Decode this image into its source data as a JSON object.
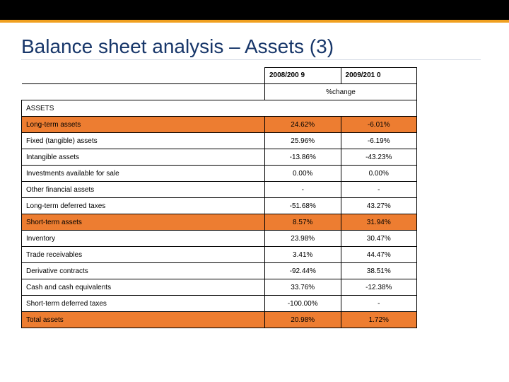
{
  "colors": {
    "top_bar": "#000000",
    "accent_bar": "#f0a020",
    "title_color": "#18376a",
    "highlight_row": "#ed7d31",
    "border": "#000000",
    "background": "#ffffff"
  },
  "title": "Balance sheet analysis – Assets (3)",
  "header": {
    "year1": "2008/200 9",
    "year2": "2009/201 0",
    "pct_label": "%change"
  },
  "section_label": "ASSETS",
  "rows": [
    {
      "label": "Long-term assets",
      "v1": "24.62%",
      "v2": "-6.01%",
      "hl": true
    },
    {
      "label": "Fixed (tangible) assets",
      "v1": "25.96%",
      "v2": "-6.19%",
      "hl": false
    },
    {
      "label": "Intangible assets",
      "v1": "-13.86%",
      "v2": "-43.23%",
      "hl": false
    },
    {
      "label": "Investments available for sale",
      "v1": "0.00%",
      "v2": "0.00%",
      "hl": false
    },
    {
      "label": "Other financial assets",
      "v1": "-",
      "v2": "-",
      "hl": false
    },
    {
      "label": "Long-term deferred taxes",
      "v1": "-51.68%",
      "v2": "43.27%",
      "hl": false
    },
    {
      "label": "Short-term assets",
      "v1": "8.57%",
      "v2": "31.94%",
      "hl": true
    },
    {
      "label": "Inventory",
      "v1": "23.98%",
      "v2": "30.47%",
      "hl": false
    },
    {
      "label": "Trade receivables",
      "v1": "3.41%",
      "v2": "44.47%",
      "hl": false
    },
    {
      "label": "Derivative contracts",
      "v1": "-92.44%",
      "v2": "38.51%",
      "hl": false
    },
    {
      "label": "Cash and cash equivalents",
      "v1": "33.76%",
      "v2": "-12.38%",
      "hl": false
    },
    {
      "label": "Short-term deferred taxes",
      "v1": "-100.00%",
      "v2": "-",
      "hl": false
    },
    {
      "label": "Total assets",
      "v1": "20.98%",
      "v2": "1.72%",
      "hl": true
    }
  ],
  "typography": {
    "title_fontsize": 28,
    "table_fontsize": 10
  }
}
